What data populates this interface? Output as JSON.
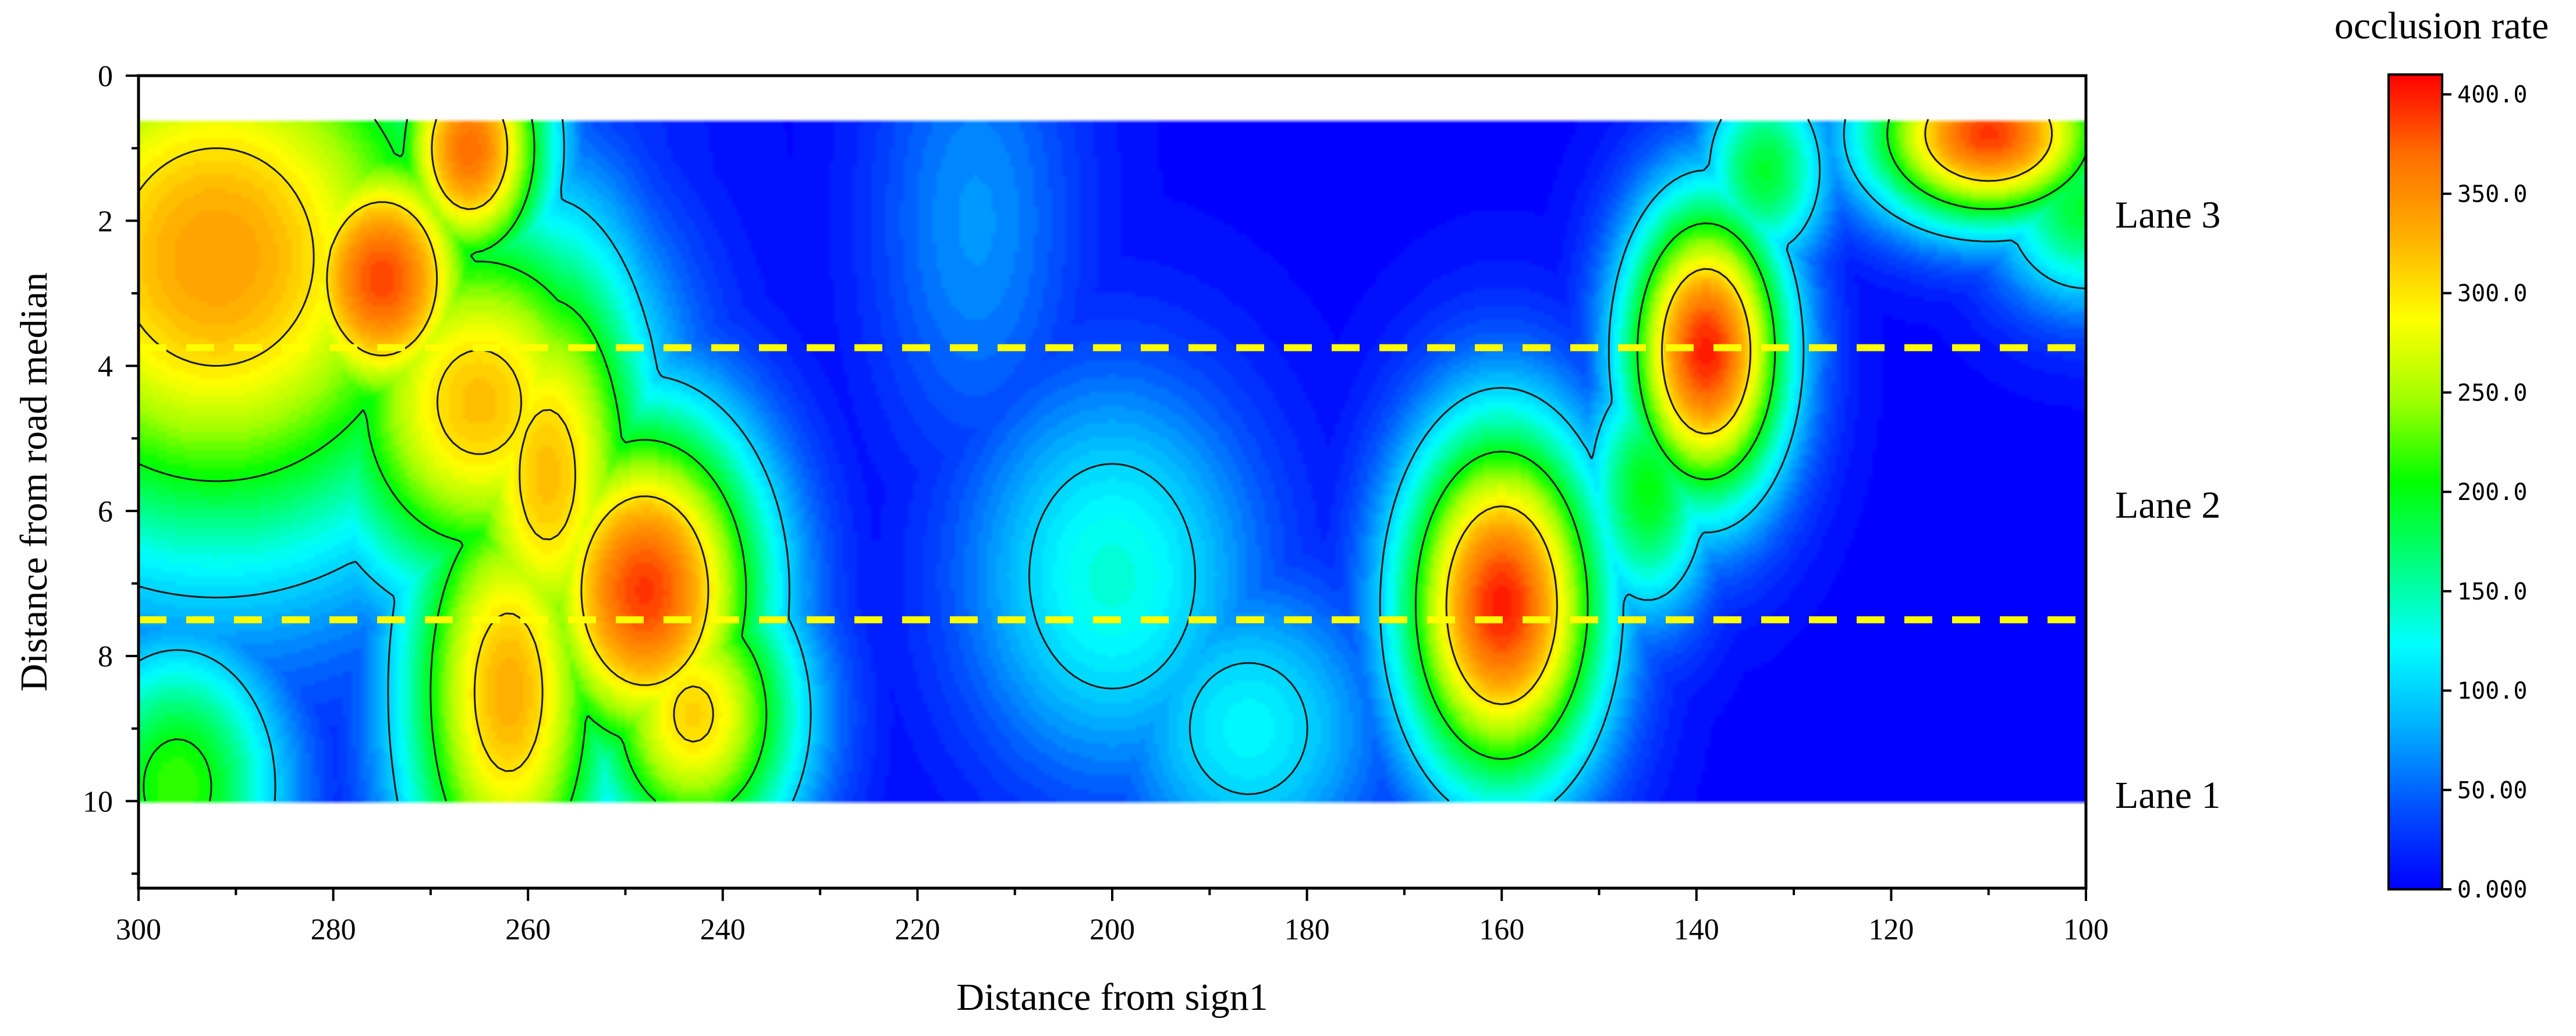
{
  "chart_data": {
    "type": "heatmap",
    "subtype": "filled-contour",
    "title": "",
    "xlabel": "Distance from sign1",
    "ylabel": "Distance from road median",
    "xlim": [
      300,
      100
    ],
    "x_reversed": true,
    "ylim": [
      0,
      11.2
    ],
    "y_reversed": true,
    "x_ticks": [
      300,
      280,
      260,
      240,
      220,
      200,
      180,
      160,
      140,
      120,
      100
    ],
    "y_ticks": [
      0,
      2,
      4,
      6,
      8,
      10
    ],
    "data_extent": {
      "x": [
        300,
        100
      ],
      "y": [
        0.6,
        10
      ]
    },
    "colorbar": {
      "title": "occlusion rate",
      "range": [
        0,
        410
      ],
      "tick_values": [
        0,
        50,
        100,
        150,
        200,
        250,
        300,
        350,
        400
      ],
      "tick_labels": [
        "0.000",
        "50.00",
        "100.0",
        "150.0",
        "200.0",
        "250.0",
        "300.0",
        "350.0",
        "400.0"
      ],
      "colormap": [
        "#0000ff",
        "#0050ff",
        "#00b0ff",
        "#00ffff",
        "#00ff80",
        "#00ff00",
        "#a0ff00",
        "#ffff00",
        "#ffb000",
        "#ff7000",
        "#ff0000"
      ]
    },
    "contour_levels": [
      100,
      200,
      300
    ],
    "lane_lines": {
      "y": [
        3.75,
        7.5
      ],
      "color": "#ffff00",
      "style": "dashed"
    },
    "lane_labels": [
      {
        "label": "Lane 3",
        "y": 1.9
      },
      {
        "label": "Lane 2",
        "y": 5.9
      },
      {
        "label": "Lane 1",
        "y": 9.9
      }
    ],
    "peaks": [
      {
        "x": 292,
        "y": 2.5,
        "value": 340,
        "sx": 20,
        "sy": 3.0
      },
      {
        "x": 275,
        "y": 2.8,
        "value": 385,
        "sx": 8,
        "sy": 1.5
      },
      {
        "x": 266,
        "y": 1.0,
        "value": 370,
        "sx": 6,
        "sy": 1.3
      },
      {
        "x": 265,
        "y": 4.5,
        "value": 320,
        "sx": 12,
        "sy": 2.0
      },
      {
        "x": 262,
        "y": 8.5,
        "value": 330,
        "sx": 8,
        "sy": 2.5
      },
      {
        "x": 258,
        "y": 5.5,
        "value": 320,
        "sx": 8,
        "sy": 2.5
      },
      {
        "x": 248,
        "y": 7.1,
        "value": 390,
        "sx": 9,
        "sy": 1.8
      },
      {
        "x": 243,
        "y": 8.8,
        "value": 310,
        "sx": 8,
        "sy": 1.5
      },
      {
        "x": 304,
        "y": 3.8,
        "value": 240,
        "sx": 8,
        "sy": 2.5
      },
      {
        "x": 296,
        "y": 9.8,
        "value": 220,
        "sx": 8,
        "sy": 1.5
      },
      {
        "x": 200,
        "y": 6.9,
        "value": 135,
        "sx": 11,
        "sy": 2.0
      },
      {
        "x": 186,
        "y": 9.0,
        "value": 120,
        "sx": 10,
        "sy": 1.5
      },
      {
        "x": 214,
        "y": 2.0,
        "value": 70,
        "sx": 8,
        "sy": 2.5
      },
      {
        "x": 160,
        "y": 7.3,
        "value": 400,
        "sx": 7.5,
        "sy": 1.8
      },
      {
        "x": 139,
        "y": 3.8,
        "value": 400,
        "sx": 6,
        "sy": 1.5
      },
      {
        "x": 145,
        "y": 5.7,
        "value": 200,
        "sx": 5,
        "sy": 1.3
      },
      {
        "x": 133,
        "y": 1.3,
        "value": 190,
        "sx": 5,
        "sy": 1.0
      },
      {
        "x": 110,
        "y": 0.8,
        "value": 390,
        "sx": 9,
        "sy": 0.9
      },
      {
        "x": 100,
        "y": 1.8,
        "value": 190,
        "sx": 7,
        "sy": 1.0
      }
    ]
  }
}
